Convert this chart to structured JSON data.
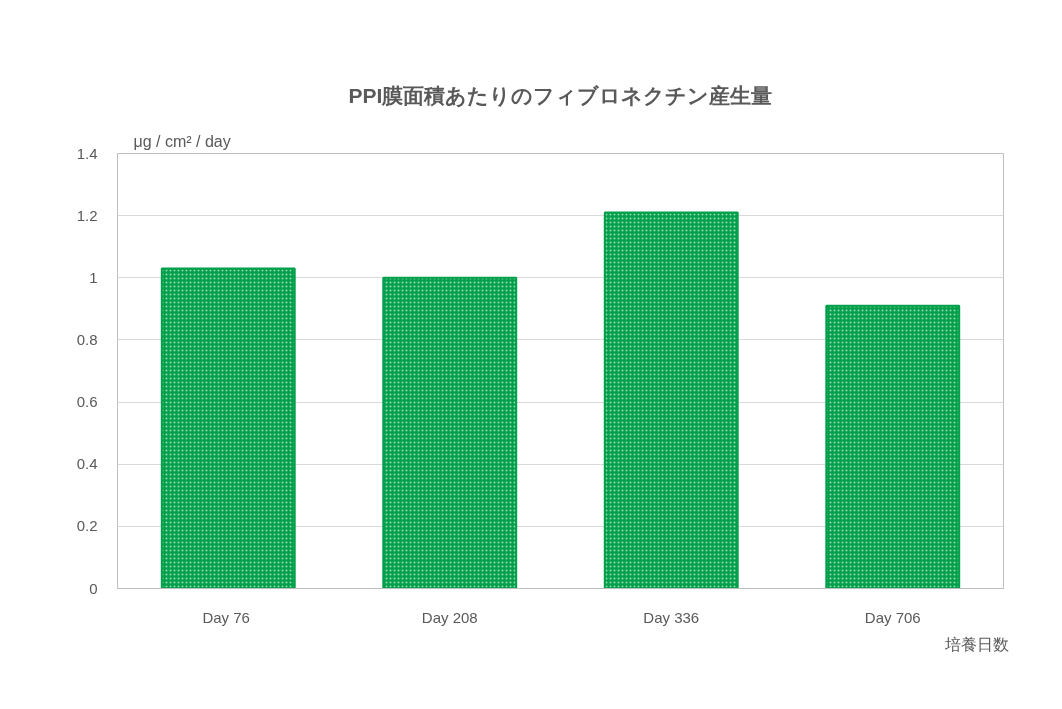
{
  "chart_data": {
    "type": "bar",
    "title": "PPI膜面積あたりのフィブロネクチン産生量",
    "ylabel": "μg / cm² / day",
    "xlabel": "培養日数",
    "categories": [
      "Day  76",
      "Day 208",
      "Day 336",
      "Day 706"
    ],
    "values": [
      1.03,
      1.0,
      1.21,
      0.91
    ],
    "color": "#00a04a",
    "ylim": [
      0,
      1.4
    ],
    "yticks": [
      0,
      0.2,
      0.4,
      0.6,
      0.8,
      1,
      1.2,
      1.4
    ],
    "grid": "y"
  }
}
